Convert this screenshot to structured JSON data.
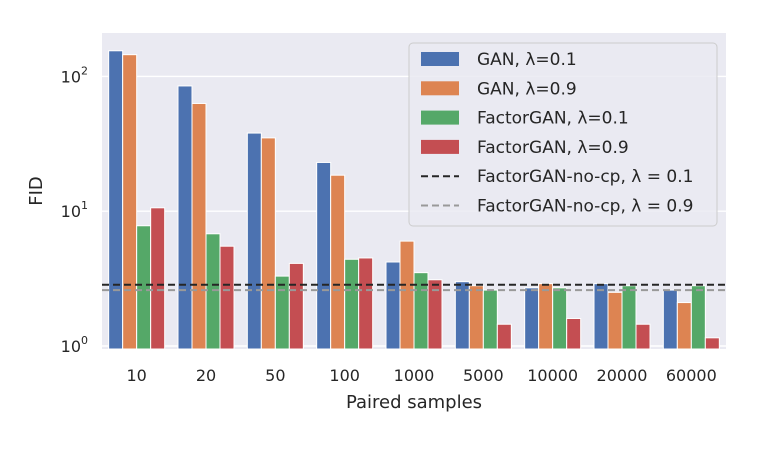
{
  "chart_data": {
    "type": "bar",
    "yscale": "log",
    "xlabel": "Paired samples",
    "ylabel": "FID",
    "ylim": [
      0.95,
      210
    ],
    "yticks": [
      {
        "value": 1,
        "base": "10",
        "exp": "0"
      },
      {
        "value": 10,
        "base": "10",
        "exp": "1"
      },
      {
        "value": 100,
        "base": "10",
        "exp": "2"
      }
    ],
    "categories": [
      "10",
      "20",
      "50",
      "100",
      "1000",
      "5000",
      "10000",
      "20000",
      "60000"
    ],
    "series": [
      {
        "name": "GAN, λ=0.1",
        "color": "#4c72b0",
        "values": [
          155,
          85,
          38,
          23,
          4.2,
          3.0,
          2.7,
          2.9,
          2.6
        ]
      },
      {
        "name": "GAN, λ=0.9",
        "color": "#dd8452",
        "values": [
          145,
          63,
          35,
          18.5,
          6.0,
          2.8,
          2.9,
          2.5,
          2.1
        ]
      },
      {
        "name": "FactorGAN, λ=0.1",
        "color": "#55a868",
        "values": [
          7.8,
          6.8,
          3.3,
          4.4,
          3.5,
          2.6,
          2.7,
          2.8,
          2.8
        ]
      },
      {
        "name": "FactorGAN, λ=0.9",
        "color": "#c44e52",
        "values": [
          10.6,
          5.5,
          4.1,
          4.5,
          3.1,
          1.45,
          1.6,
          1.45,
          1.15
        ]
      }
    ],
    "hlines": [
      {
        "name": "FactorGAN-no-cp, λ = 0.1",
        "value": 2.85,
        "color": "#262626"
      },
      {
        "name": "FactorGAN-no-cp, λ = 0.9",
        "value": 2.6,
        "color": "#999999"
      }
    ],
    "legend_position": "top-right",
    "grid": true
  }
}
